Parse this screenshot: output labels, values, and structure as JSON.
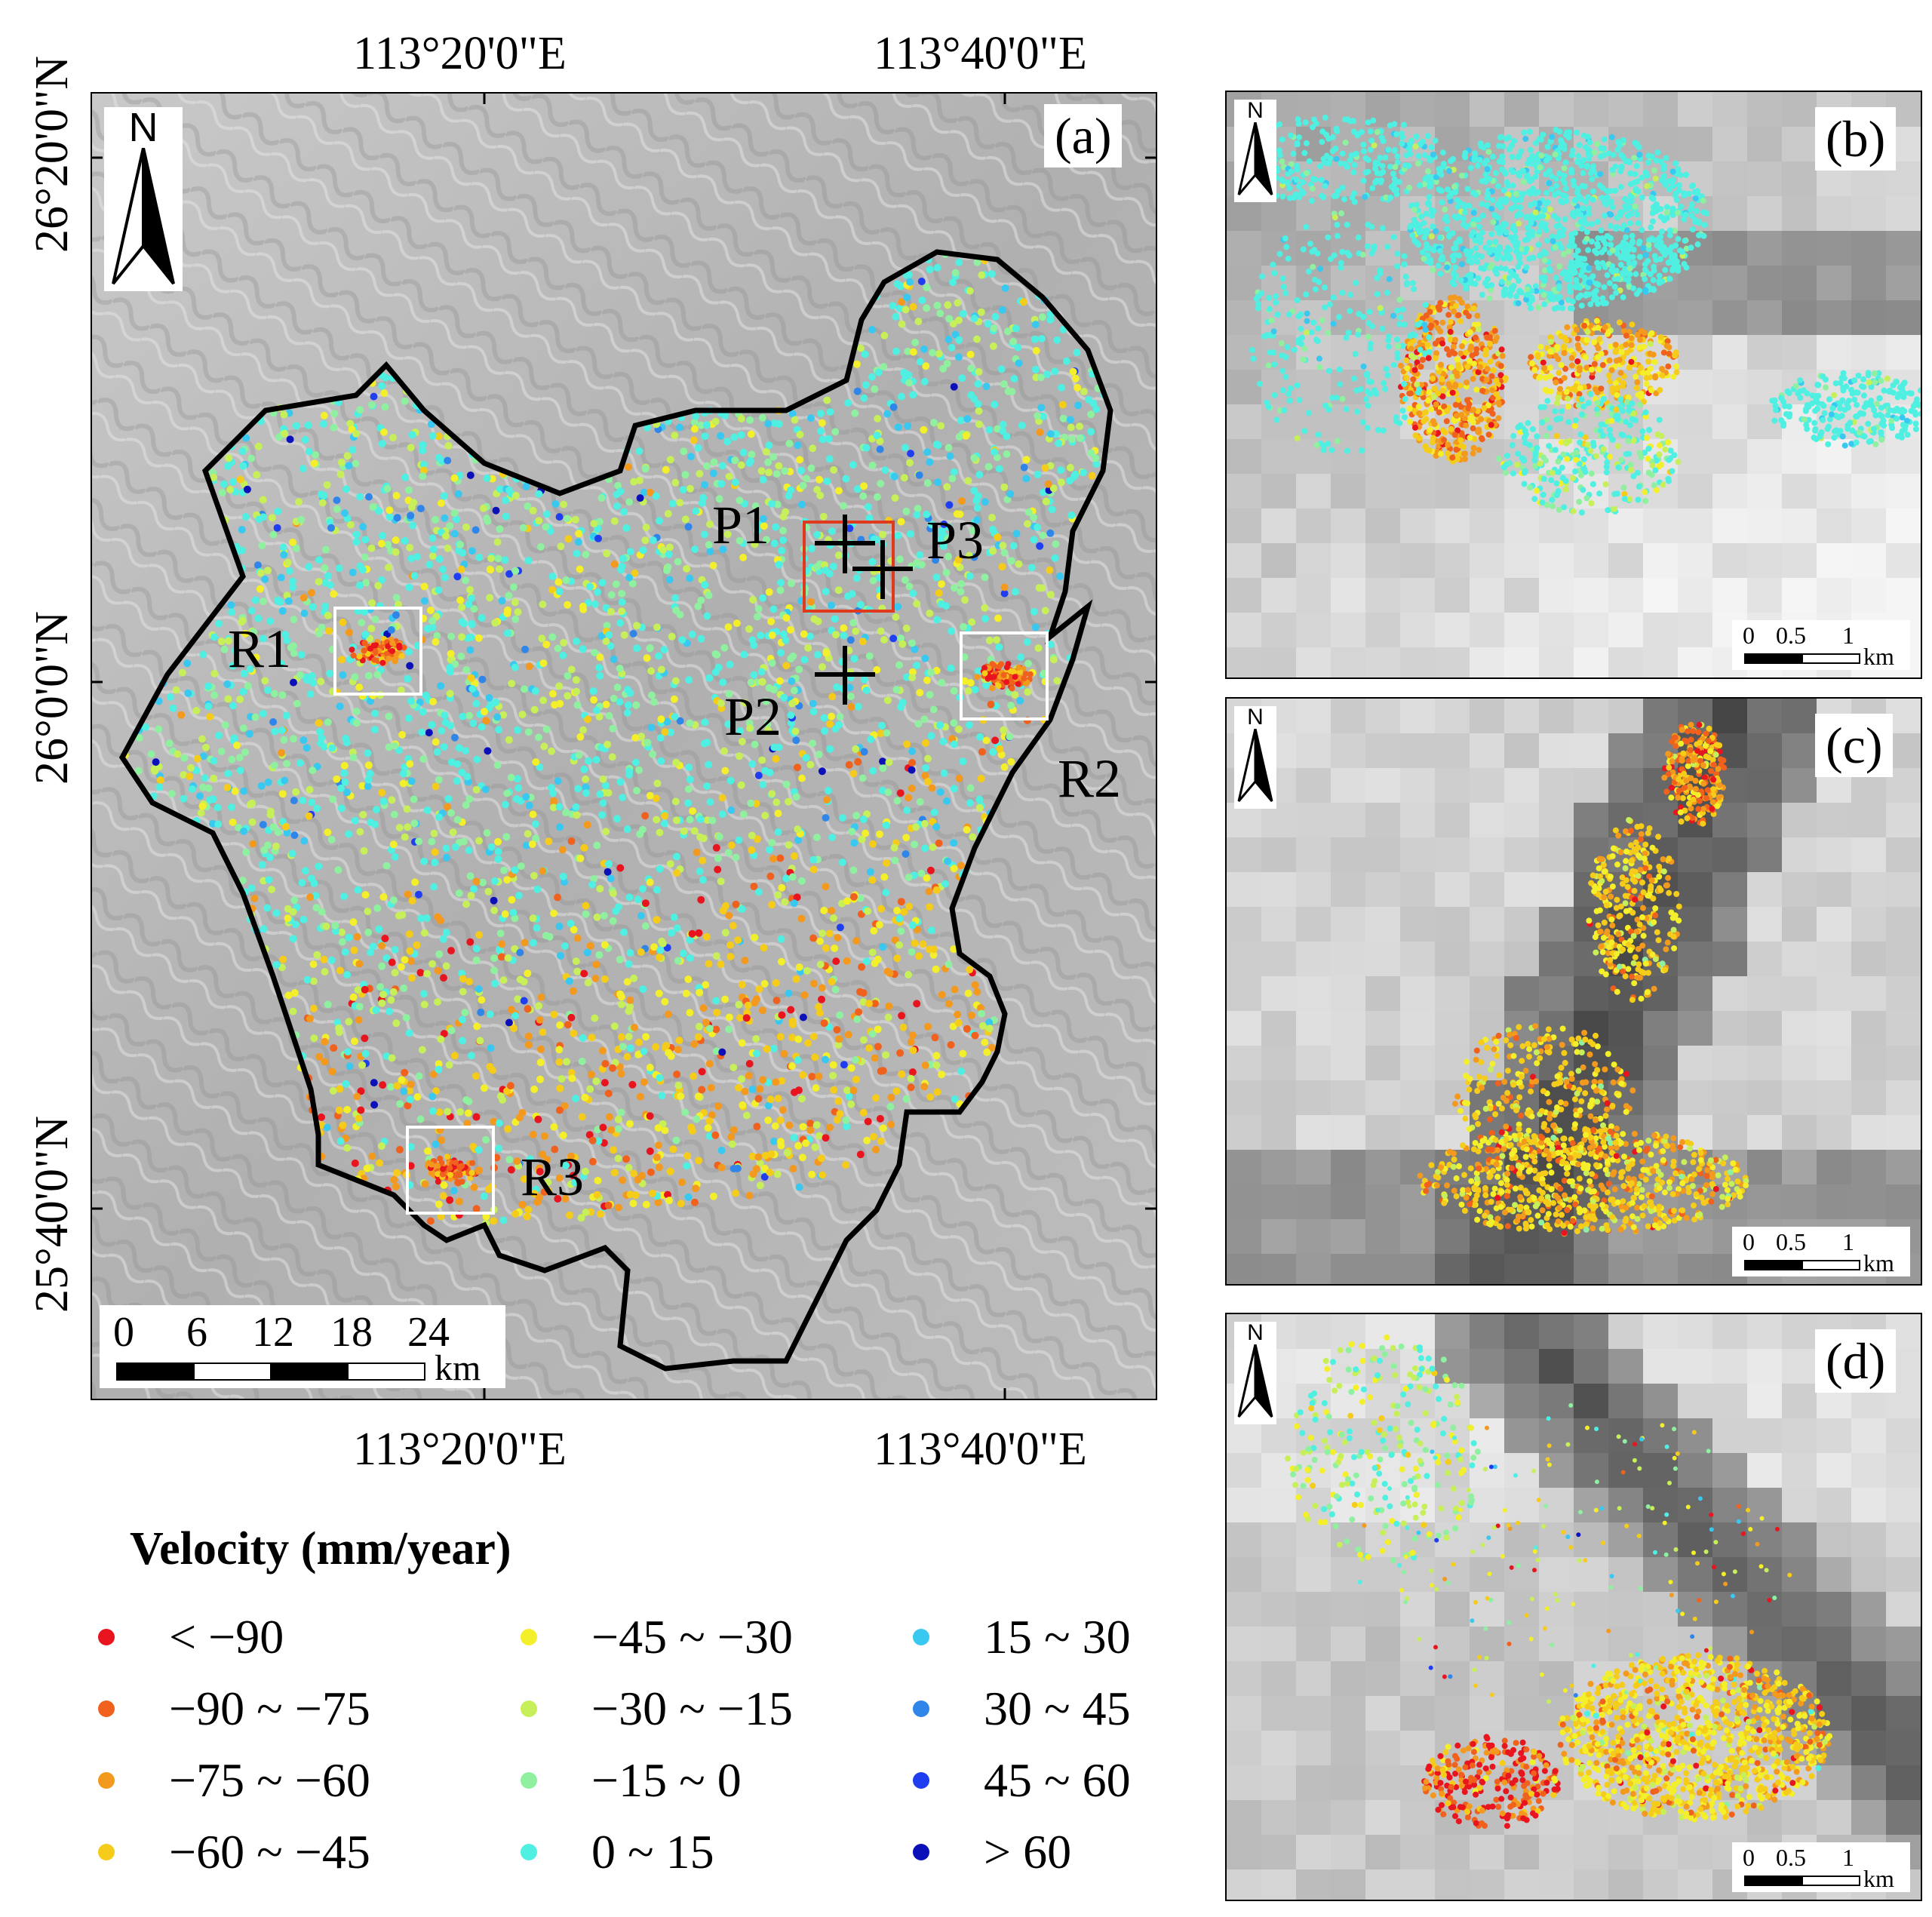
{
  "map": {
    "panel_label": "(a)",
    "north": "N",
    "lon_labels": [
      "113°20'0\"E",
      "113°40'0\"E"
    ],
    "lat_labels": [
      "26°20'0\"N",
      "26°0'0\"N",
      "25°40'0\"N"
    ],
    "scale_ticks": [
      "0",
      "6",
      "12",
      "18",
      "24"
    ],
    "scale_unit": "km",
    "regions": [
      "R1",
      "R2",
      "R3"
    ],
    "points": [
      "P1",
      "P2",
      "P3"
    ]
  },
  "insets": [
    {
      "label": "(b)",
      "north": "N",
      "scale_ticks": [
        "0",
        "0.5",
        "1"
      ],
      "scale_unit": "km"
    },
    {
      "label": "(c)",
      "north": "N",
      "scale_ticks": [
        "0",
        "0.5",
        "1"
      ],
      "scale_unit": "km"
    },
    {
      "label": "(d)",
      "north": "N",
      "scale_ticks": [
        "0",
        "0.5",
        "1"
      ],
      "scale_unit": "km"
    }
  ],
  "legend": {
    "title": "Velocity (mm/year)",
    "classes": [
      {
        "label": "< −90",
        "color": "#e8141e"
      },
      {
        "label": "−90 ~ −75",
        "color": "#f0611e"
      },
      {
        "label": "−75 ~ −60",
        "color": "#f39a1e"
      },
      {
        "label": "−60 ~ −45",
        "color": "#f5cc1a"
      },
      {
        "label": "−45 ~ −30",
        "color": "#f3ef2a"
      },
      {
        "label": "−30 ~ −15",
        "color": "#c6ef5a"
      },
      {
        "label": "−15 ~ 0",
        "color": "#8ff0a0"
      },
      {
        "label": "0 ~ 15",
        "color": "#4fefe2"
      },
      {
        "label": "15 ~ 30",
        "color": "#38c8f0"
      },
      {
        "label": "30 ~ 45",
        "color": "#2f86e8"
      },
      {
        "label": "45 ~ 60",
        "color": "#1f3ef0"
      },
      {
        "label": "> 60",
        "color": "#0b10b8"
      }
    ]
  },
  "colors": {
    "frame": "#000000",
    "highlight_box": "#e03a1e",
    "region_box": "#ffffff",
    "hillshade": "#b3b3b3"
  }
}
